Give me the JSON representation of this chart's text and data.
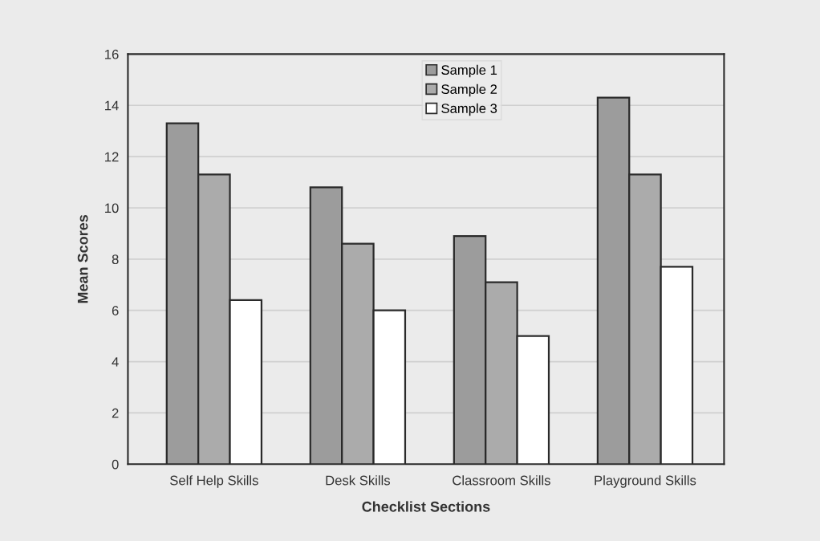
{
  "chart_data": {
    "type": "bar",
    "xlabel": "Checklist Sections",
    "ylabel": "Mean Scores",
    "categories": [
      "Self Help Skills",
      "Desk Skills",
      "Classroom Skills",
      "Playground Skills"
    ],
    "series": [
      {
        "name": "Sample 1",
        "color": "#9c9c9c",
        "values": [
          13.3,
          10.8,
          8.9,
          14.3
        ]
      },
      {
        "name": "Sample 2",
        "color": "#ababab",
        "values": [
          11.3,
          8.6,
          7.1,
          11.3
        ]
      },
      {
        "name": "Sample 3",
        "color": "#ffffff",
        "values": [
          6.4,
          6.0,
          5.0,
          7.7
        ]
      }
    ],
    "ylim": [
      0,
      16
    ],
    "yticks": [
      0,
      2,
      4,
      6,
      8,
      10,
      12,
      14,
      16
    ],
    "grid": "y",
    "legend": "top"
  }
}
